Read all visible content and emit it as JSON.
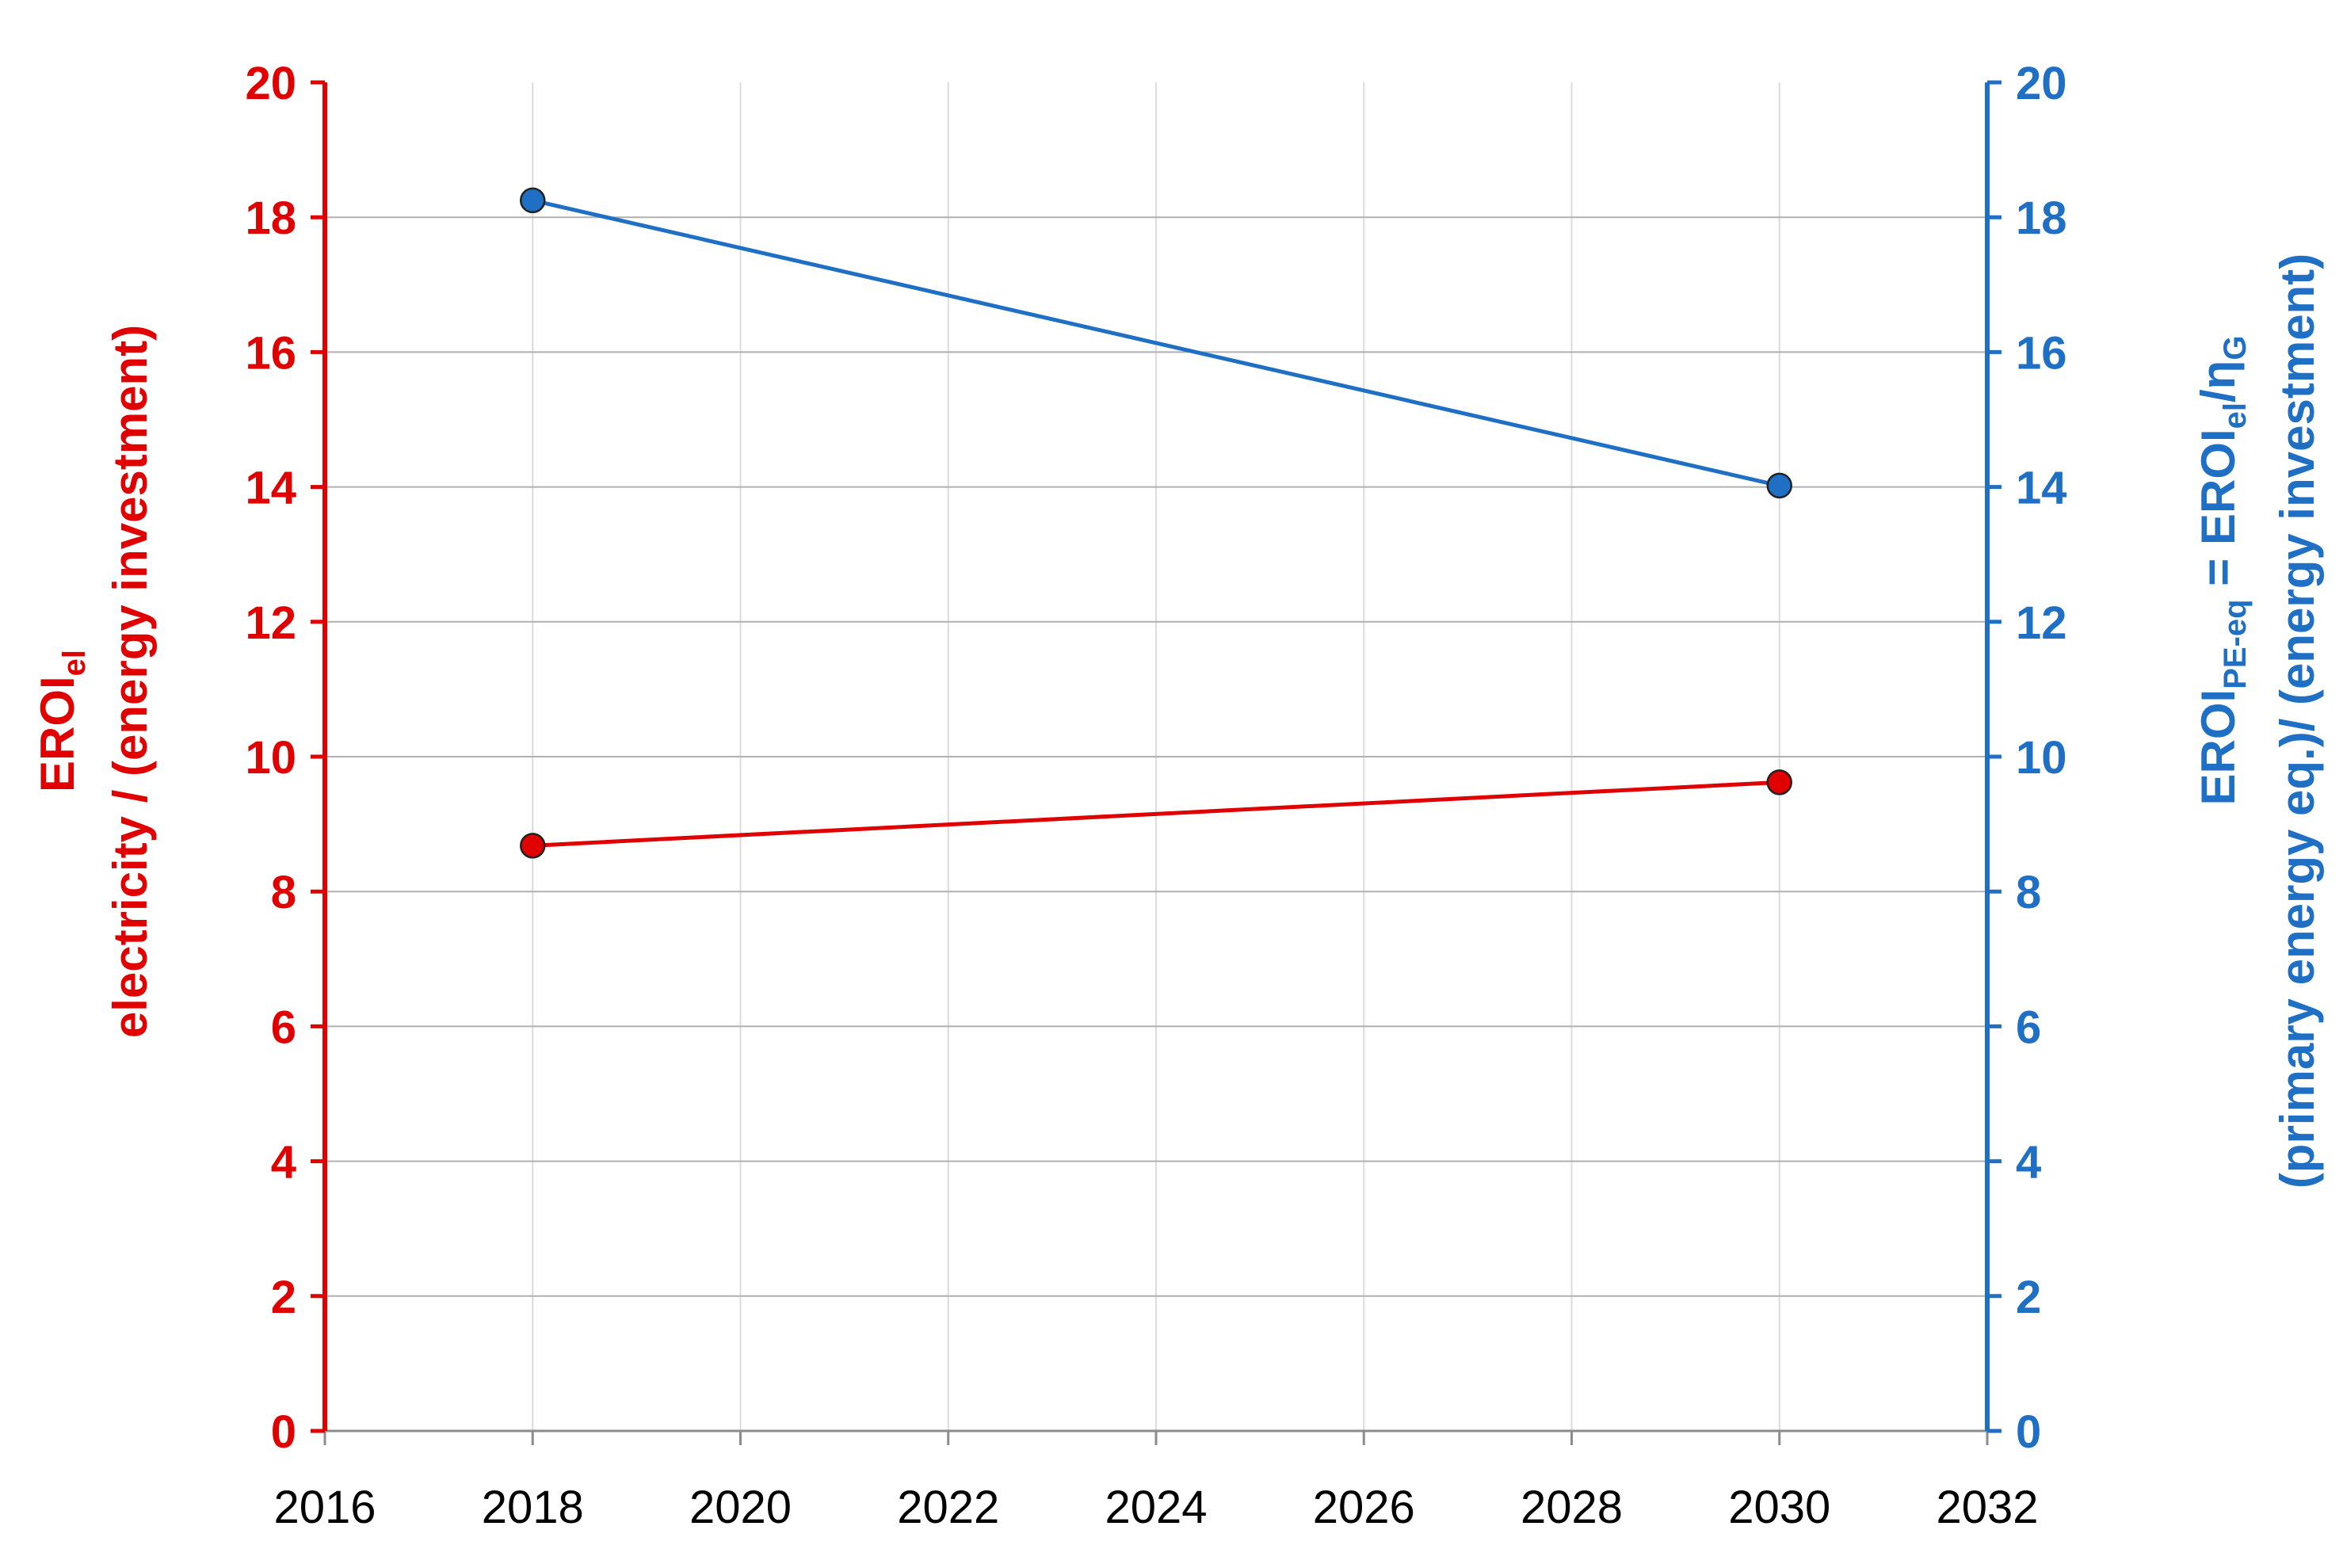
{
  "chart_data": {
    "type": "line",
    "title": "",
    "xlabel": "",
    "xlim": [
      2016,
      2032
    ],
    "xticks": [
      "2016",
      "2020",
      "2024",
      "2028",
      "2032",
      "2018",
      "2022",
      "2026",
      "2030"
    ],
    "ylim_left": [
      0,
      20
    ],
    "ylim_right": [
      0,
      20
    ],
    "yticks": [
      "0",
      "2",
      "4",
      "6",
      "8",
      "10",
      "12",
      "14",
      "16",
      "18",
      "20"
    ],
    "grid": true,
    "ylabel_left": {
      "main": "EROI",
      "sub": "el",
      "line2": "electricity / (energy investment)"
    },
    "ylabel_right": {
      "main1": "EROI",
      "sub1": "PE-eq",
      "mid": " = EROI",
      "sub2": "el",
      "slash": "/η",
      "sub3": "G",
      "line2": "(primary energy eq.)/ (energy investment)"
    },
    "colors": {
      "left": "#e00000",
      "right": "#1f6fc4",
      "grid": "#b0b0b0",
      "grid_minor": "#dcdcdc"
    },
    "series": [
      {
        "axis": "left",
        "color": "#e00000",
        "points": [
          [
            2018,
            8.68
          ],
          [
            2030,
            9.62
          ]
        ]
      },
      {
        "axis": "right",
        "color": "#1f6fc4",
        "points": [
          [
            2018,
            18.25
          ],
          [
            2030,
            14.02
          ]
        ]
      }
    ]
  }
}
